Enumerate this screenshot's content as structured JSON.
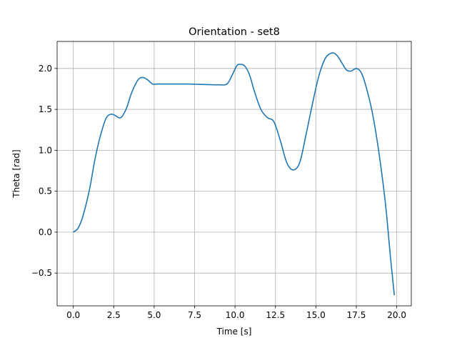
{
  "chart_data": {
    "type": "line",
    "title": "Orientation - set8",
    "xlabel": "Time [s]",
    "ylabel": "Theta [rad]",
    "xlim": [
      -1.0,
      20.9
    ],
    "ylim": [
      -0.9,
      2.33
    ],
    "xticks": [
      0.0,
      2.5,
      5.0,
      7.5,
      10.0,
      12.5,
      15.0,
      17.5,
      20.0
    ],
    "xtick_labels": [
      "0.0",
      "2.5",
      "5.0",
      "7.5",
      "10.0",
      "12.5",
      "15.0",
      "17.5",
      "20.0"
    ],
    "yticks": [
      -0.5,
      0.0,
      0.5,
      1.0,
      1.5,
      2.0
    ],
    "ytick_labels": [
      "−0.5",
      "0.0",
      "0.5",
      "1.0",
      "1.5",
      "2.0"
    ],
    "grid": true,
    "series": [
      {
        "color": "#1f77b4",
        "x": [
          0.0,
          0.3,
          0.6,
          1.0,
          1.3,
          1.6,
          2.0,
          2.3,
          2.55,
          2.8,
          3.0,
          3.3,
          3.6,
          4.0,
          4.3,
          4.6,
          4.9,
          5.2,
          6.0,
          7.0,
          8.0,
          9.0,
          9.5,
          9.8,
          10.1,
          10.3,
          10.6,
          10.9,
          11.2,
          11.6,
          12.0,
          12.4,
          12.8,
          13.2,
          13.6,
          14.0,
          14.4,
          14.8,
          15.2,
          15.6,
          16.0,
          16.3,
          16.6,
          16.9,
          17.2,
          17.5,
          17.8,
          18.1,
          18.5,
          18.9,
          19.3,
          19.6,
          19.85
        ],
        "y": [
          0.0,
          0.05,
          0.2,
          0.52,
          0.85,
          1.12,
          1.38,
          1.44,
          1.43,
          1.4,
          1.41,
          1.52,
          1.7,
          1.86,
          1.89,
          1.86,
          1.81,
          1.81,
          1.81,
          1.81,
          1.805,
          1.8,
          1.81,
          1.91,
          2.03,
          2.05,
          2.03,
          1.92,
          1.72,
          1.5,
          1.4,
          1.35,
          1.12,
          0.85,
          0.76,
          0.85,
          1.2,
          1.58,
          1.92,
          2.13,
          2.19,
          2.16,
          2.07,
          1.98,
          1.97,
          2.0,
          1.95,
          1.78,
          1.45,
          0.97,
          0.35,
          -0.28,
          -0.77
        ]
      }
    ]
  }
}
